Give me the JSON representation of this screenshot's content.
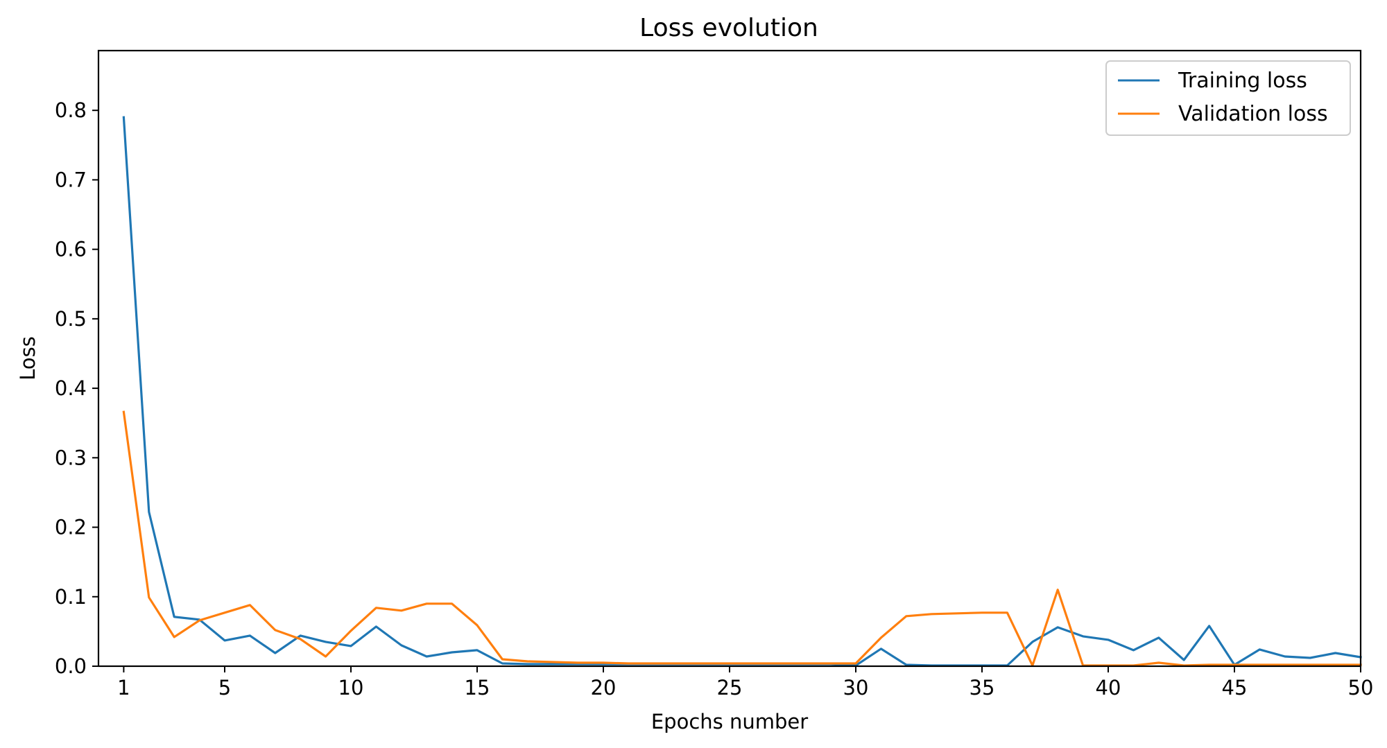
{
  "chart_data": {
    "type": "line",
    "title": "Loss evolution",
    "xlabel": "Epochs number",
    "ylabel": "Loss",
    "xlim": [
      0,
      50
    ],
    "ylim": [
      0,
      0.886
    ],
    "x_ticks": [
      1,
      5,
      10,
      15,
      20,
      25,
      30,
      35,
      40,
      45,
      50
    ],
    "y_ticks": [
      0.0,
      0.1,
      0.2,
      0.3,
      0.4,
      0.5,
      0.6,
      0.7,
      0.8
    ],
    "y_tick_labels": [
      "0.0",
      "0.1",
      "0.2",
      "0.3",
      "0.4",
      "0.5",
      "0.6",
      "0.7",
      "0.8"
    ],
    "grid": false,
    "legend_position": "top-right",
    "x": [
      1,
      2,
      3,
      4,
      5,
      6,
      7,
      8,
      9,
      10,
      11,
      12,
      13,
      14,
      15,
      16,
      17,
      18,
      19,
      20,
      21,
      22,
      23,
      24,
      25,
      26,
      27,
      28,
      29,
      30,
      31,
      32,
      33,
      34,
      35,
      36,
      37,
      38,
      39,
      40,
      41,
      42,
      43,
      44,
      45,
      46,
      47,
      48,
      49,
      50
    ],
    "series": [
      {
        "name": "Training loss",
        "color": "#1f77b4",
        "values": [
          0.79,
          0.222,
          0.071,
          0.067,
          0.037,
          0.044,
          0.019,
          0.044,
          0.035,
          0.029,
          0.057,
          0.03,
          0.014,
          0.02,
          0.023,
          0.004,
          0.003,
          0.003,
          0.003,
          0.003,
          0.003,
          0.003,
          0.003,
          0.003,
          0.003,
          0.003,
          0.003,
          0.003,
          0.003,
          0.001,
          0.025,
          0.002,
          0.001,
          0.001,
          0.001,
          0.001,
          0.035,
          0.056,
          0.043,
          0.038,
          0.023,
          0.041,
          0.009,
          0.058,
          0.002,
          0.024,
          0.014,
          0.012,
          0.019,
          0.013
        ]
      },
      {
        "name": "Validation loss",
        "color": "#ff7f0e",
        "values": [
          0.366,
          0.099,
          0.042,
          0.066,
          0.077,
          0.088,
          0.052,
          0.039,
          0.014,
          0.051,
          0.084,
          0.08,
          0.09,
          0.09,
          0.059,
          0.01,
          0.007,
          0.006,
          0.005,
          0.005,
          0.004,
          0.004,
          0.004,
          0.004,
          0.004,
          0.004,
          0.004,
          0.004,
          0.004,
          0.004,
          0.041,
          0.072,
          0.075,
          0.076,
          0.077,
          0.077,
          0.001,
          0.11,
          0.001,
          0.001,
          0.001,
          0.005,
          0.001,
          0.002,
          0.002,
          0.002,
          0.002,
          0.002,
          0.002,
          0.002
        ]
      }
    ]
  }
}
